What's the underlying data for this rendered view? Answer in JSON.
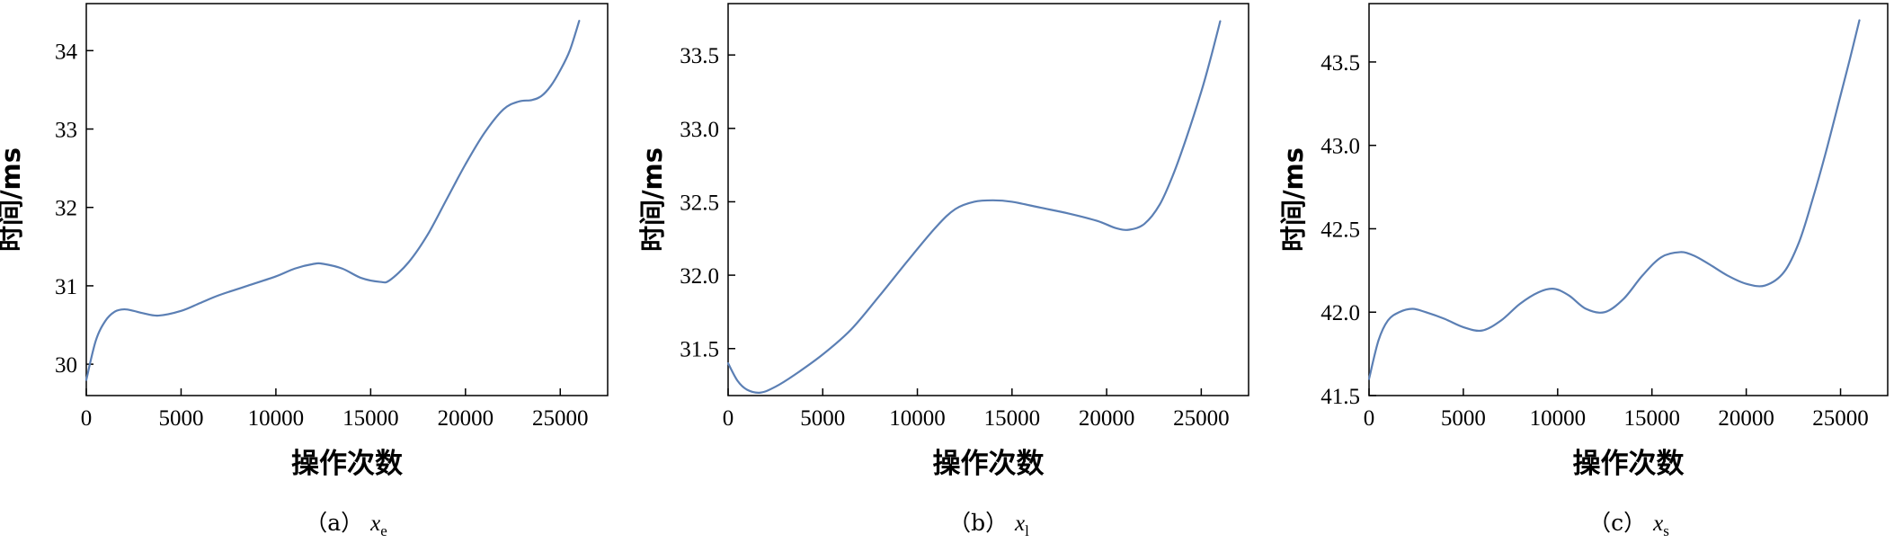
{
  "chart_data": [
    {
      "type": "line",
      "caption_prefix": "（a）",
      "caption_var": "x",
      "caption_sub": "e",
      "xlabel": "操作次数",
      "ylabel": "时间/ms",
      "xlim": [
        0,
        27500
      ],
      "ylim": [
        29.6,
        34.6
      ],
      "xticks": [
        0,
        5000,
        10000,
        15000,
        20000,
        25000
      ],
      "yticks": [
        30,
        31,
        32,
        33,
        34
      ],
      "line_color": "#5b7fb4",
      "series": [
        {
          "x": [
            0,
            500,
            1000,
            1500,
            2000,
            2500,
            3000,
            3800,
            5000,
            6000,
            7000,
            8500,
            10000,
            11000,
            12000,
            12500,
            13500,
            14500,
            15500,
            16000,
            17000,
            18000,
            19000,
            20000,
            21000,
            22000,
            22800,
            23500,
            24000,
            24500,
            25000,
            25500,
            26000
          ],
          "y": [
            29.8,
            30.3,
            30.55,
            30.67,
            30.7,
            30.68,
            30.65,
            30.62,
            30.68,
            30.78,
            30.88,
            31.0,
            31.12,
            31.22,
            31.28,
            31.28,
            31.22,
            31.1,
            31.05,
            31.07,
            31.3,
            31.65,
            32.1,
            32.55,
            32.95,
            33.25,
            33.35,
            33.37,
            33.42,
            33.55,
            33.75,
            34.0,
            34.38
          ]
        }
      ]
    },
    {
      "type": "line",
      "caption_prefix": "（b）",
      "caption_var": "x",
      "caption_sub": "l",
      "xlabel": "操作次数",
      "ylabel": "时间/ms",
      "xlim": [
        0,
        27500
      ],
      "ylim": [
        31.18,
        33.85
      ],
      "xticks": [
        0,
        5000,
        10000,
        15000,
        20000,
        25000
      ],
      "yticks": [
        31.5,
        32.0,
        32.5,
        33.0,
        33.5
      ],
      "line_color": "#5b7fb4",
      "series": [
        {
          "x": [
            0,
            500,
            1000,
            1700,
            2500,
            3500,
            5000,
            6500,
            8000,
            9500,
            11000,
            12000,
            13000,
            14000,
            15000,
            16500,
            18000,
            19500,
            20500,
            21200,
            22000,
            22800,
            23500,
            24200,
            25000,
            25500,
            26000
          ],
          "y": [
            31.4,
            31.28,
            31.22,
            31.2,
            31.24,
            31.32,
            31.46,
            31.63,
            31.86,
            32.1,
            32.33,
            32.45,
            32.5,
            32.51,
            32.5,
            32.46,
            32.42,
            32.37,
            32.32,
            32.31,
            32.35,
            32.48,
            32.68,
            32.93,
            33.25,
            33.48,
            33.73
          ]
        }
      ]
    },
    {
      "type": "line",
      "caption_prefix": "（c）",
      "caption_var": "x",
      "caption_sub": "s",
      "xlabel": "操作次数",
      "ylabel": "时间/ms",
      "xlim": [
        0,
        27500
      ],
      "ylim": [
        41.5,
        43.85
      ],
      "xticks": [
        0,
        5000,
        10000,
        15000,
        20000,
        25000
      ],
      "yticks": [
        41.5,
        42.0,
        42.5,
        43.0,
        43.5
      ],
      "line_color": "#5b7fb4",
      "series": [
        {
          "x": [
            0,
            500,
            1000,
            1600,
            2300,
            3000,
            4000,
            5000,
            6000,
            7000,
            8000,
            9000,
            9800,
            10600,
            11500,
            12500,
            13500,
            14500,
            15500,
            16500,
            17200,
            18000,
            19000,
            20000,
            21000,
            22000,
            22800,
            23500,
            24200,
            25000,
            25500,
            26000
          ],
          "y": [
            41.6,
            41.83,
            41.95,
            42.0,
            42.02,
            42.0,
            41.96,
            41.91,
            41.89,
            41.95,
            42.05,
            42.12,
            42.14,
            42.1,
            42.02,
            42.0,
            42.08,
            42.22,
            42.33,
            42.36,
            42.34,
            42.29,
            42.22,
            42.17,
            42.16,
            42.24,
            42.42,
            42.67,
            42.95,
            43.3,
            43.52,
            43.75
          ]
        }
      ]
    }
  ]
}
